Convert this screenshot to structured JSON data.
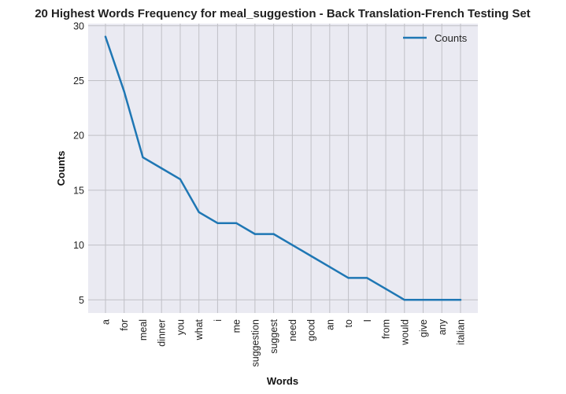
{
  "chart_data": {
    "type": "line",
    "title": "20 Highest Words Frequency for meal_suggestion - Back Translation-French Testing Set",
    "xlabel": "Words",
    "ylabel": "Counts",
    "categories": [
      "a",
      "for",
      "meal",
      "dinner",
      "you",
      "what",
      "i",
      "me",
      "suggestion",
      "suggest",
      "need",
      "good",
      "an",
      "to",
      "I",
      "from",
      "would",
      "give",
      "any",
      "italian"
    ],
    "series": [
      {
        "name": "Counts",
        "values": [
          29,
          24,
          18,
          17,
          16,
          13,
          12,
          12,
          11,
          11,
          10,
          9,
          8,
          7,
          7,
          6,
          5,
          5,
          5,
          5
        ]
      }
    ],
    "ylim": [
      3.8,
      30.2
    ],
    "yticks": [
      5,
      10,
      15,
      20,
      25,
      30
    ],
    "grid": true,
    "legend": "top-right",
    "colors": {
      "line": "#1f77b4",
      "plot_bg": "#eaeaf2",
      "grid": "#c0c0c6"
    }
  }
}
